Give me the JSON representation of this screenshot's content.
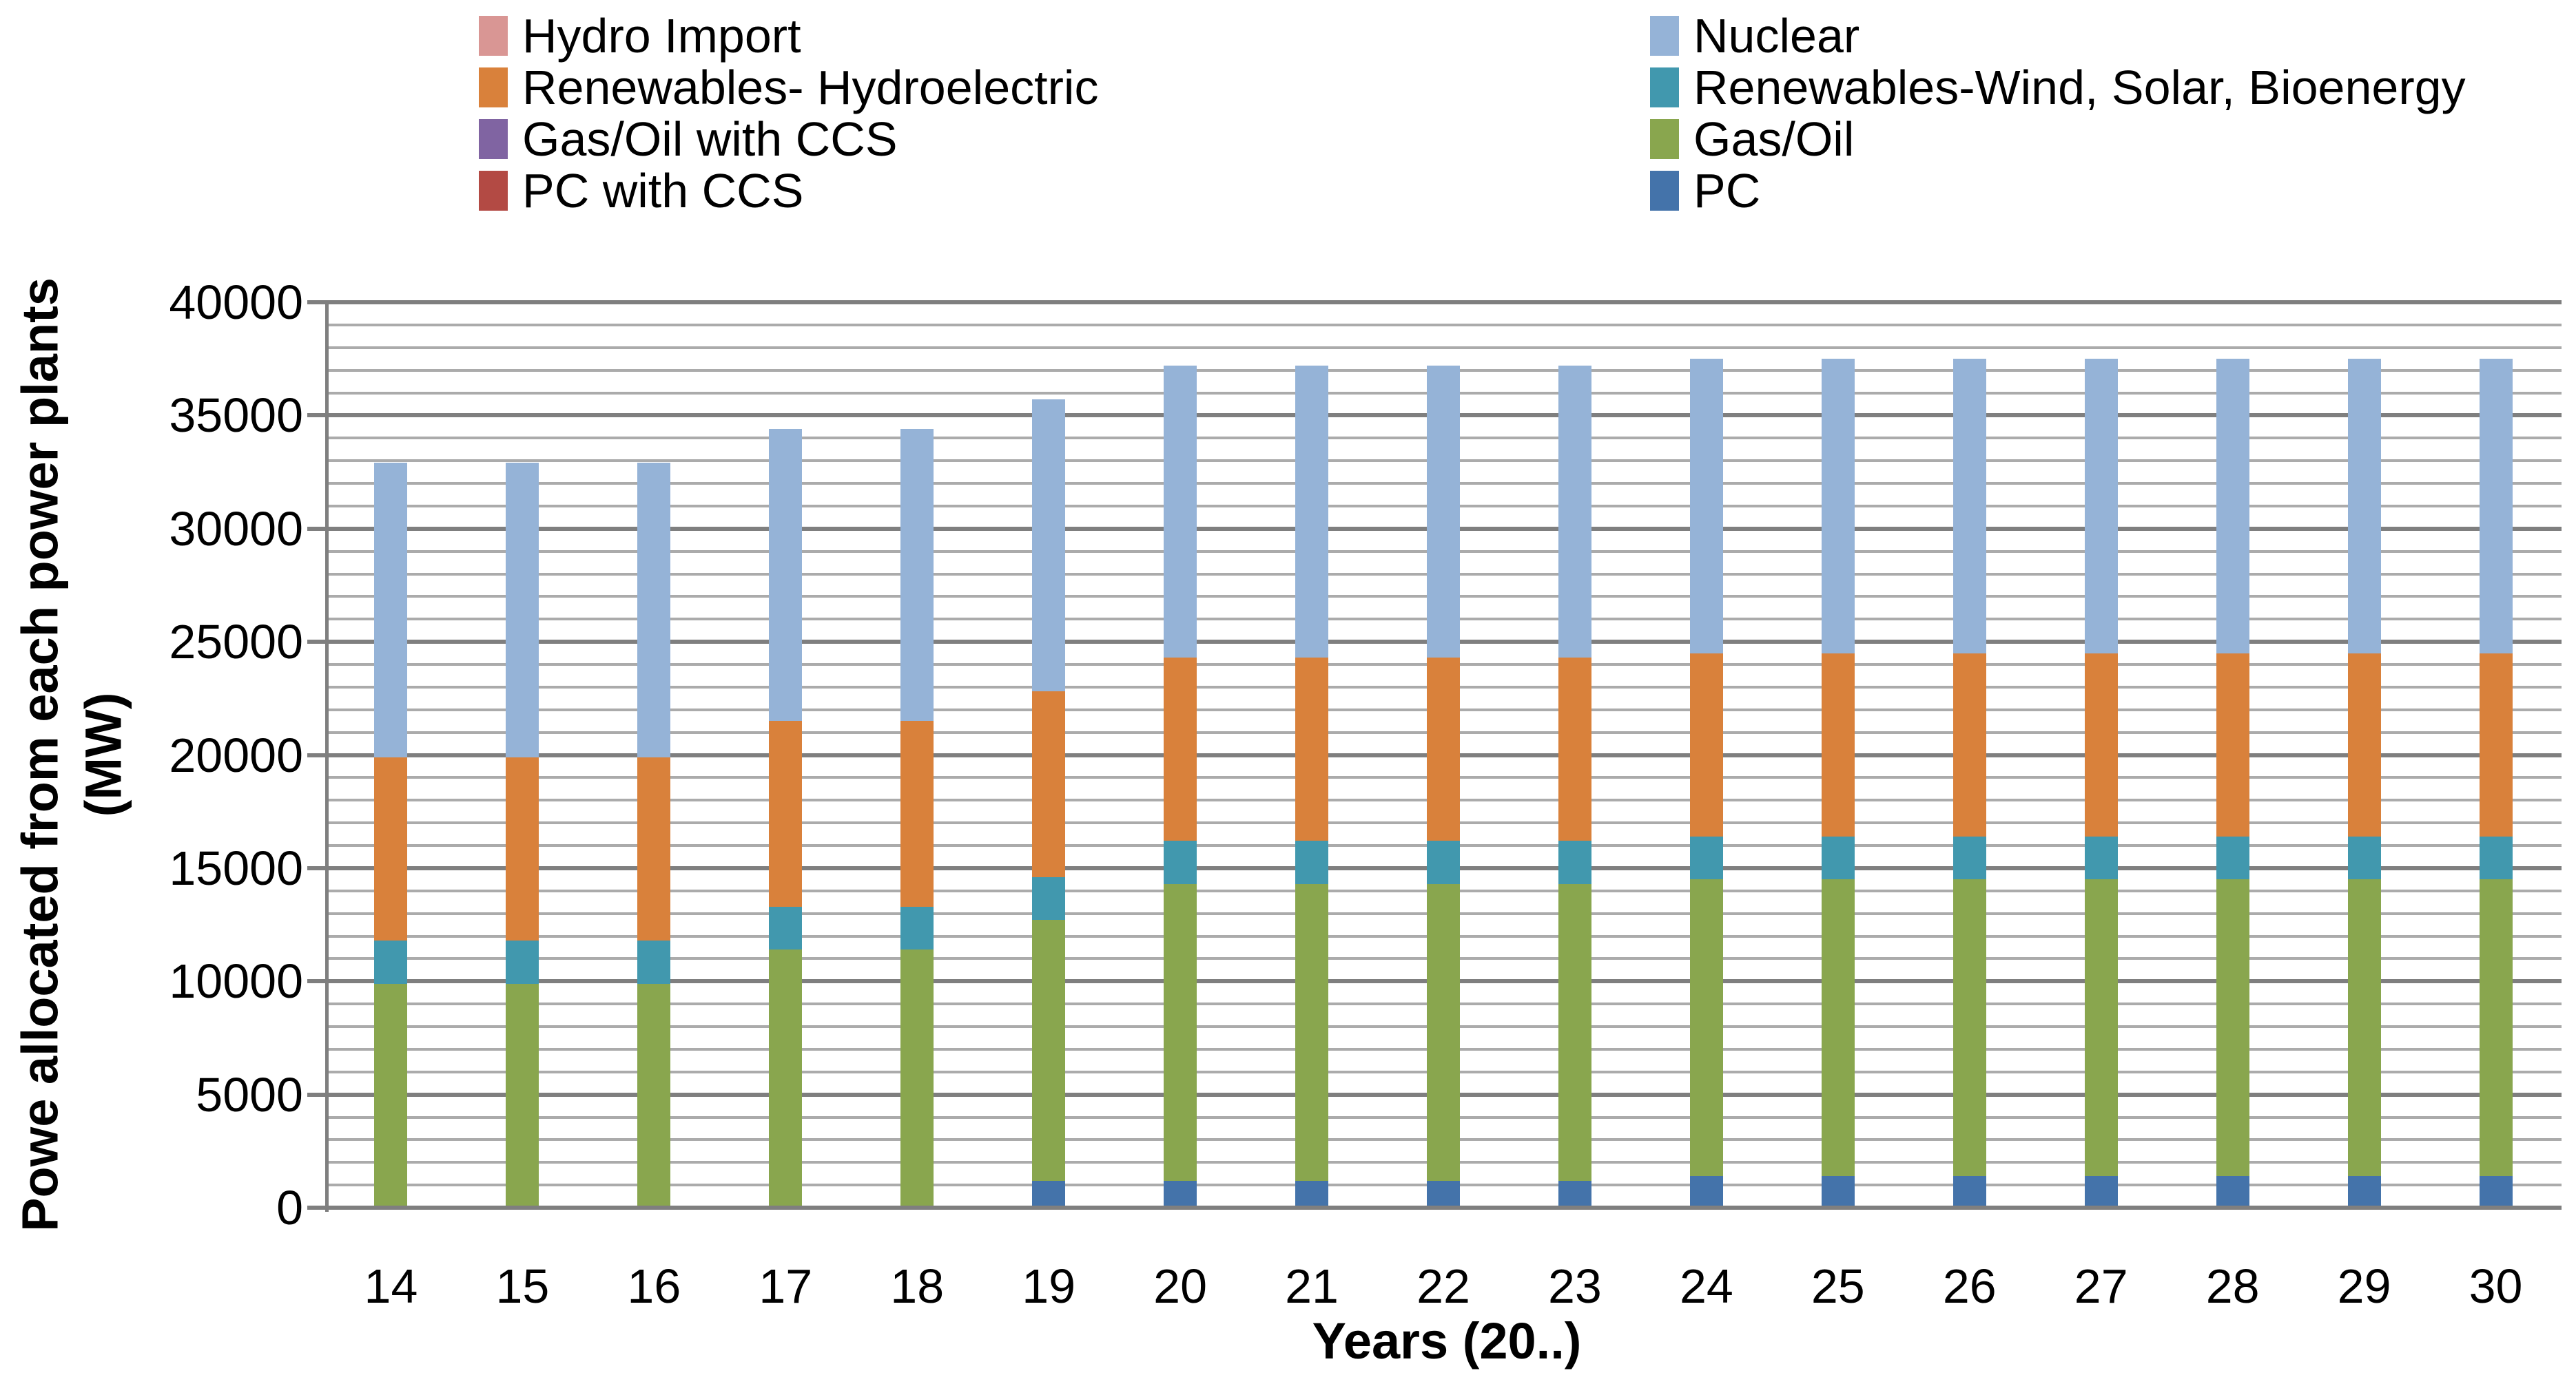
{
  "figure": {
    "background": "#ffffff",
    "y_axis_title_line1": "Powe allocated from each power plants",
    "y_axis_title_line2": "(MW)",
    "x_axis_title": "Years (20..)"
  },
  "axes": {
    "y_min": 0,
    "y_max": 40000,
    "y_major_step": 5000,
    "y_minor_step": 1000,
    "y_tick_labels": [
      "0",
      "5000",
      "10000",
      "15000",
      "20000",
      "25000",
      "30000",
      "35000",
      "40000"
    ],
    "x_tick_labels": [
      "14",
      "15",
      "16",
      "17",
      "18",
      "19",
      "20",
      "21",
      "22",
      "23",
      "24",
      "25",
      "26",
      "27",
      "28",
      "29",
      "30"
    ]
  },
  "colors": {
    "major_gridline": "#7F7F7F",
    "minor_gridline": "#ABABAB",
    "axis_line": "#7F7F7F",
    "text": "#000000",
    "nuclear": "#95B3D7",
    "renewables_hydroelectric": "#D9813B",
    "renewables_wind_solar_bioenergy": "#4198AE",
    "gas_oil": "#89A64E",
    "pc": "#4473AA",
    "hydro_import": "#D99694",
    "gas_oil_with_ccs": "#8064A2",
    "pc_with_ccs": "#B34A44"
  },
  "legend": {
    "columns": [
      {
        "items": [
          {
            "label": "Hydro Import",
            "color": "#D99694"
          },
          {
            "label": "Renewables- Hydroelectric",
            "color": "#D9813B"
          },
          {
            "label": "Gas/Oil with CCS",
            "color": "#8064A2"
          },
          {
            "label": "PC with CCS",
            "color": "#B34A44"
          }
        ]
      },
      {
        "items": [
          {
            "label": "Nuclear",
            "color": "#95B3D7"
          },
          {
            "label": "Renewables-Wind, Solar, Bioenergy",
            "color": "#4198AE"
          },
          {
            "label": "Gas/Oil",
            "color": "#89A64E"
          },
          {
            "label": "PC",
            "color": "#4473AA"
          }
        ]
      }
    ]
  },
  "chart_data": {
    "type": "bar",
    "stacked": true,
    "title": "",
    "xlabel": "Years (20..)",
    "ylabel": "Powe allocated from each power plants (MW)",
    "ylim": [
      0,
      40000
    ],
    "y_major_step": 5000,
    "y_minor_step": 1000,
    "grid": "horizontal major+minor",
    "legend_position": "top, two columns",
    "categories": [
      "14",
      "15",
      "16",
      "17",
      "18",
      "19",
      "20",
      "21",
      "22",
      "23",
      "24",
      "25",
      "26",
      "27",
      "28",
      "29",
      "30"
    ],
    "series": [
      {
        "name": "PC",
        "color": "#4473AA",
        "values": [
          0,
          0,
          0,
          0,
          0,
          1200,
          1200,
          1200,
          1200,
          1200,
          1400,
          1400,
          1400,
          1400,
          1400,
          1400,
          1400
        ]
      },
      {
        "name": "Gas/Oil",
        "color": "#89A64E",
        "values": [
          9900,
          9900,
          9900,
          11400,
          11400,
          11500,
          13100,
          13100,
          13100,
          13100,
          13100,
          13100,
          13100,
          13100,
          13100,
          13100,
          13100
        ]
      },
      {
        "name": "Renewables-Wind, Solar, Bioenergy",
        "color": "#4198AE",
        "values": [
          1900,
          1900,
          1900,
          1900,
          1900,
          1900,
          1900,
          1900,
          1900,
          1900,
          1900,
          1900,
          1900,
          1900,
          1900,
          1900,
          1900
        ]
      },
      {
        "name": "Renewables- Hydroelectric",
        "color": "#D9813B",
        "values": [
          8100,
          8100,
          8100,
          8200,
          8200,
          8200,
          8100,
          8100,
          8100,
          8100,
          8100,
          8100,
          8100,
          8100,
          8100,
          8100,
          8100
        ]
      },
      {
        "name": "Nuclear",
        "color": "#95B3D7",
        "values": [
          13000,
          13000,
          13000,
          12900,
          12900,
          12900,
          12900,
          12900,
          12900,
          12900,
          13000,
          13000,
          13000,
          13000,
          13000,
          13000,
          13000
        ]
      },
      {
        "name": "PC with CCS",
        "color": "#B34A44",
        "values": [
          0,
          0,
          0,
          0,
          0,
          0,
          0,
          0,
          0,
          0,
          0,
          0,
          0,
          0,
          0,
          0,
          0
        ]
      },
      {
        "name": "Gas/Oil with CCS",
        "color": "#8064A2",
        "values": [
          0,
          0,
          0,
          0,
          0,
          0,
          0,
          0,
          0,
          0,
          0,
          0,
          0,
          0,
          0,
          0,
          0
        ]
      },
      {
        "name": "Hydro Import",
        "color": "#D99694",
        "values": [
          0,
          0,
          0,
          0,
          0,
          0,
          0,
          0,
          0,
          0,
          0,
          0,
          0,
          0,
          0,
          0,
          0
        ]
      }
    ],
    "totals_by_year": [
      32900,
      32900,
      32900,
      34400,
      34400,
      35700,
      37200,
      37200,
      37200,
      37200,
      37500,
      37500,
      37500,
      37500,
      37500,
      37500,
      37500
    ]
  }
}
